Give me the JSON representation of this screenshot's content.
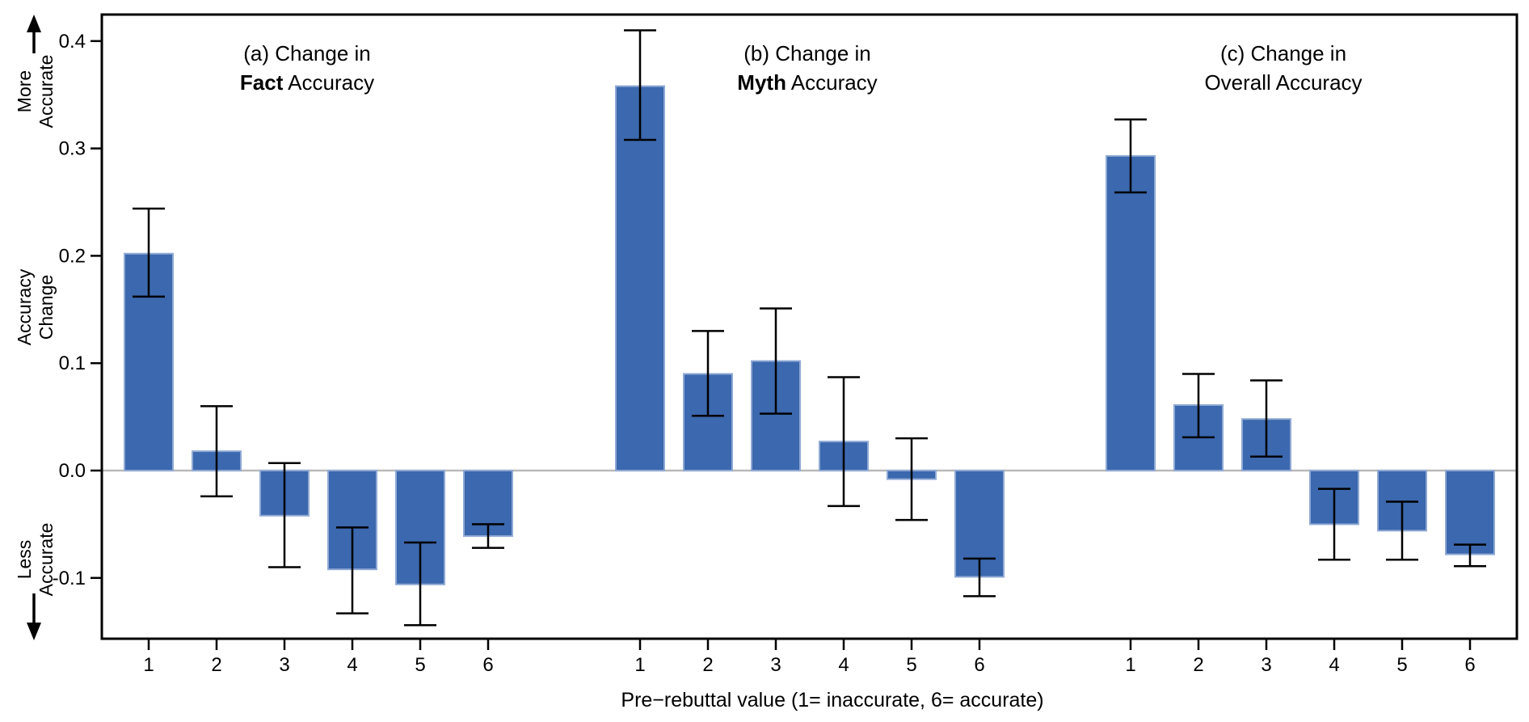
{
  "figure": {
    "background": "#ffffff"
  },
  "chart_data": {
    "type": "bar",
    "title": "",
    "categories": [
      "1",
      "2",
      "3",
      "4",
      "5",
      "6"
    ],
    "x_axis": {
      "label": "Pre−rebuttal value (1= inaccurate, 6= accurate)"
    },
    "y_axis": {
      "label": "Accuracy Change",
      "tick_values": [
        0.4,
        0.3,
        0.2,
        0.1,
        0.0,
        -0.1
      ],
      "tick_labels": [
        "0.4",
        "0.3",
        "0.2",
        "0.1",
        "0.0",
        "-0.1"
      ],
      "range": [
        -0.157,
        0.425
      ],
      "direction_labels": {
        "top": [
          "More",
          "Accurate"
        ],
        "center": [
          "Accuracy",
          "Change"
        ],
        "bottom": [
          "Less",
          "Accurate"
        ]
      }
    },
    "grid": false,
    "legend": false,
    "error_bars": true,
    "panels": [
      {
        "id": "a",
        "title_line1": "(a) Change in",
        "title_bold": "Fact",
        "title_rest": " Accuracy",
        "values": [
          0.202,
          0.018,
          -0.042,
          -0.092,
          -0.106,
          -0.061
        ],
        "ci_low": [
          0.162,
          -0.024,
          -0.09,
          -0.133,
          -0.144,
          -0.072
        ],
        "ci_high": [
          0.244,
          0.06,
          0.007,
          -0.053,
          -0.067,
          -0.05
        ]
      },
      {
        "id": "b",
        "title_line1": "(b) Change in",
        "title_bold": "Myth",
        "title_rest": " Accuracy",
        "values": [
          0.358,
          0.09,
          0.102,
          0.027,
          -0.008,
          -0.099
        ],
        "ci_low": [
          0.308,
          0.051,
          0.053,
          -0.033,
          -0.046,
          -0.117
        ],
        "ci_high": [
          0.41,
          0.13,
          0.151,
          0.087,
          0.03,
          -0.082
        ]
      },
      {
        "id": "c",
        "title_line1": "(c) Change in",
        "title_bold": "",
        "title_rest": "Overall Accuracy",
        "values": [
          0.293,
          0.061,
          0.048,
          -0.05,
          -0.056,
          -0.078
        ],
        "ci_low": [
          0.259,
          0.031,
          0.013,
          -0.083,
          -0.083,
          -0.089
        ],
        "ci_high": [
          0.327,
          0.09,
          0.084,
          -0.017,
          -0.029,
          -0.069
        ]
      }
    ],
    "colors": {
      "bar_fill": "#3b68ae",
      "bar_stroke": "#8fa9d4",
      "error_bar": "#000000",
      "zero_line": "#b9b9b9",
      "frame": "#000000",
      "text": "#000000"
    }
  }
}
